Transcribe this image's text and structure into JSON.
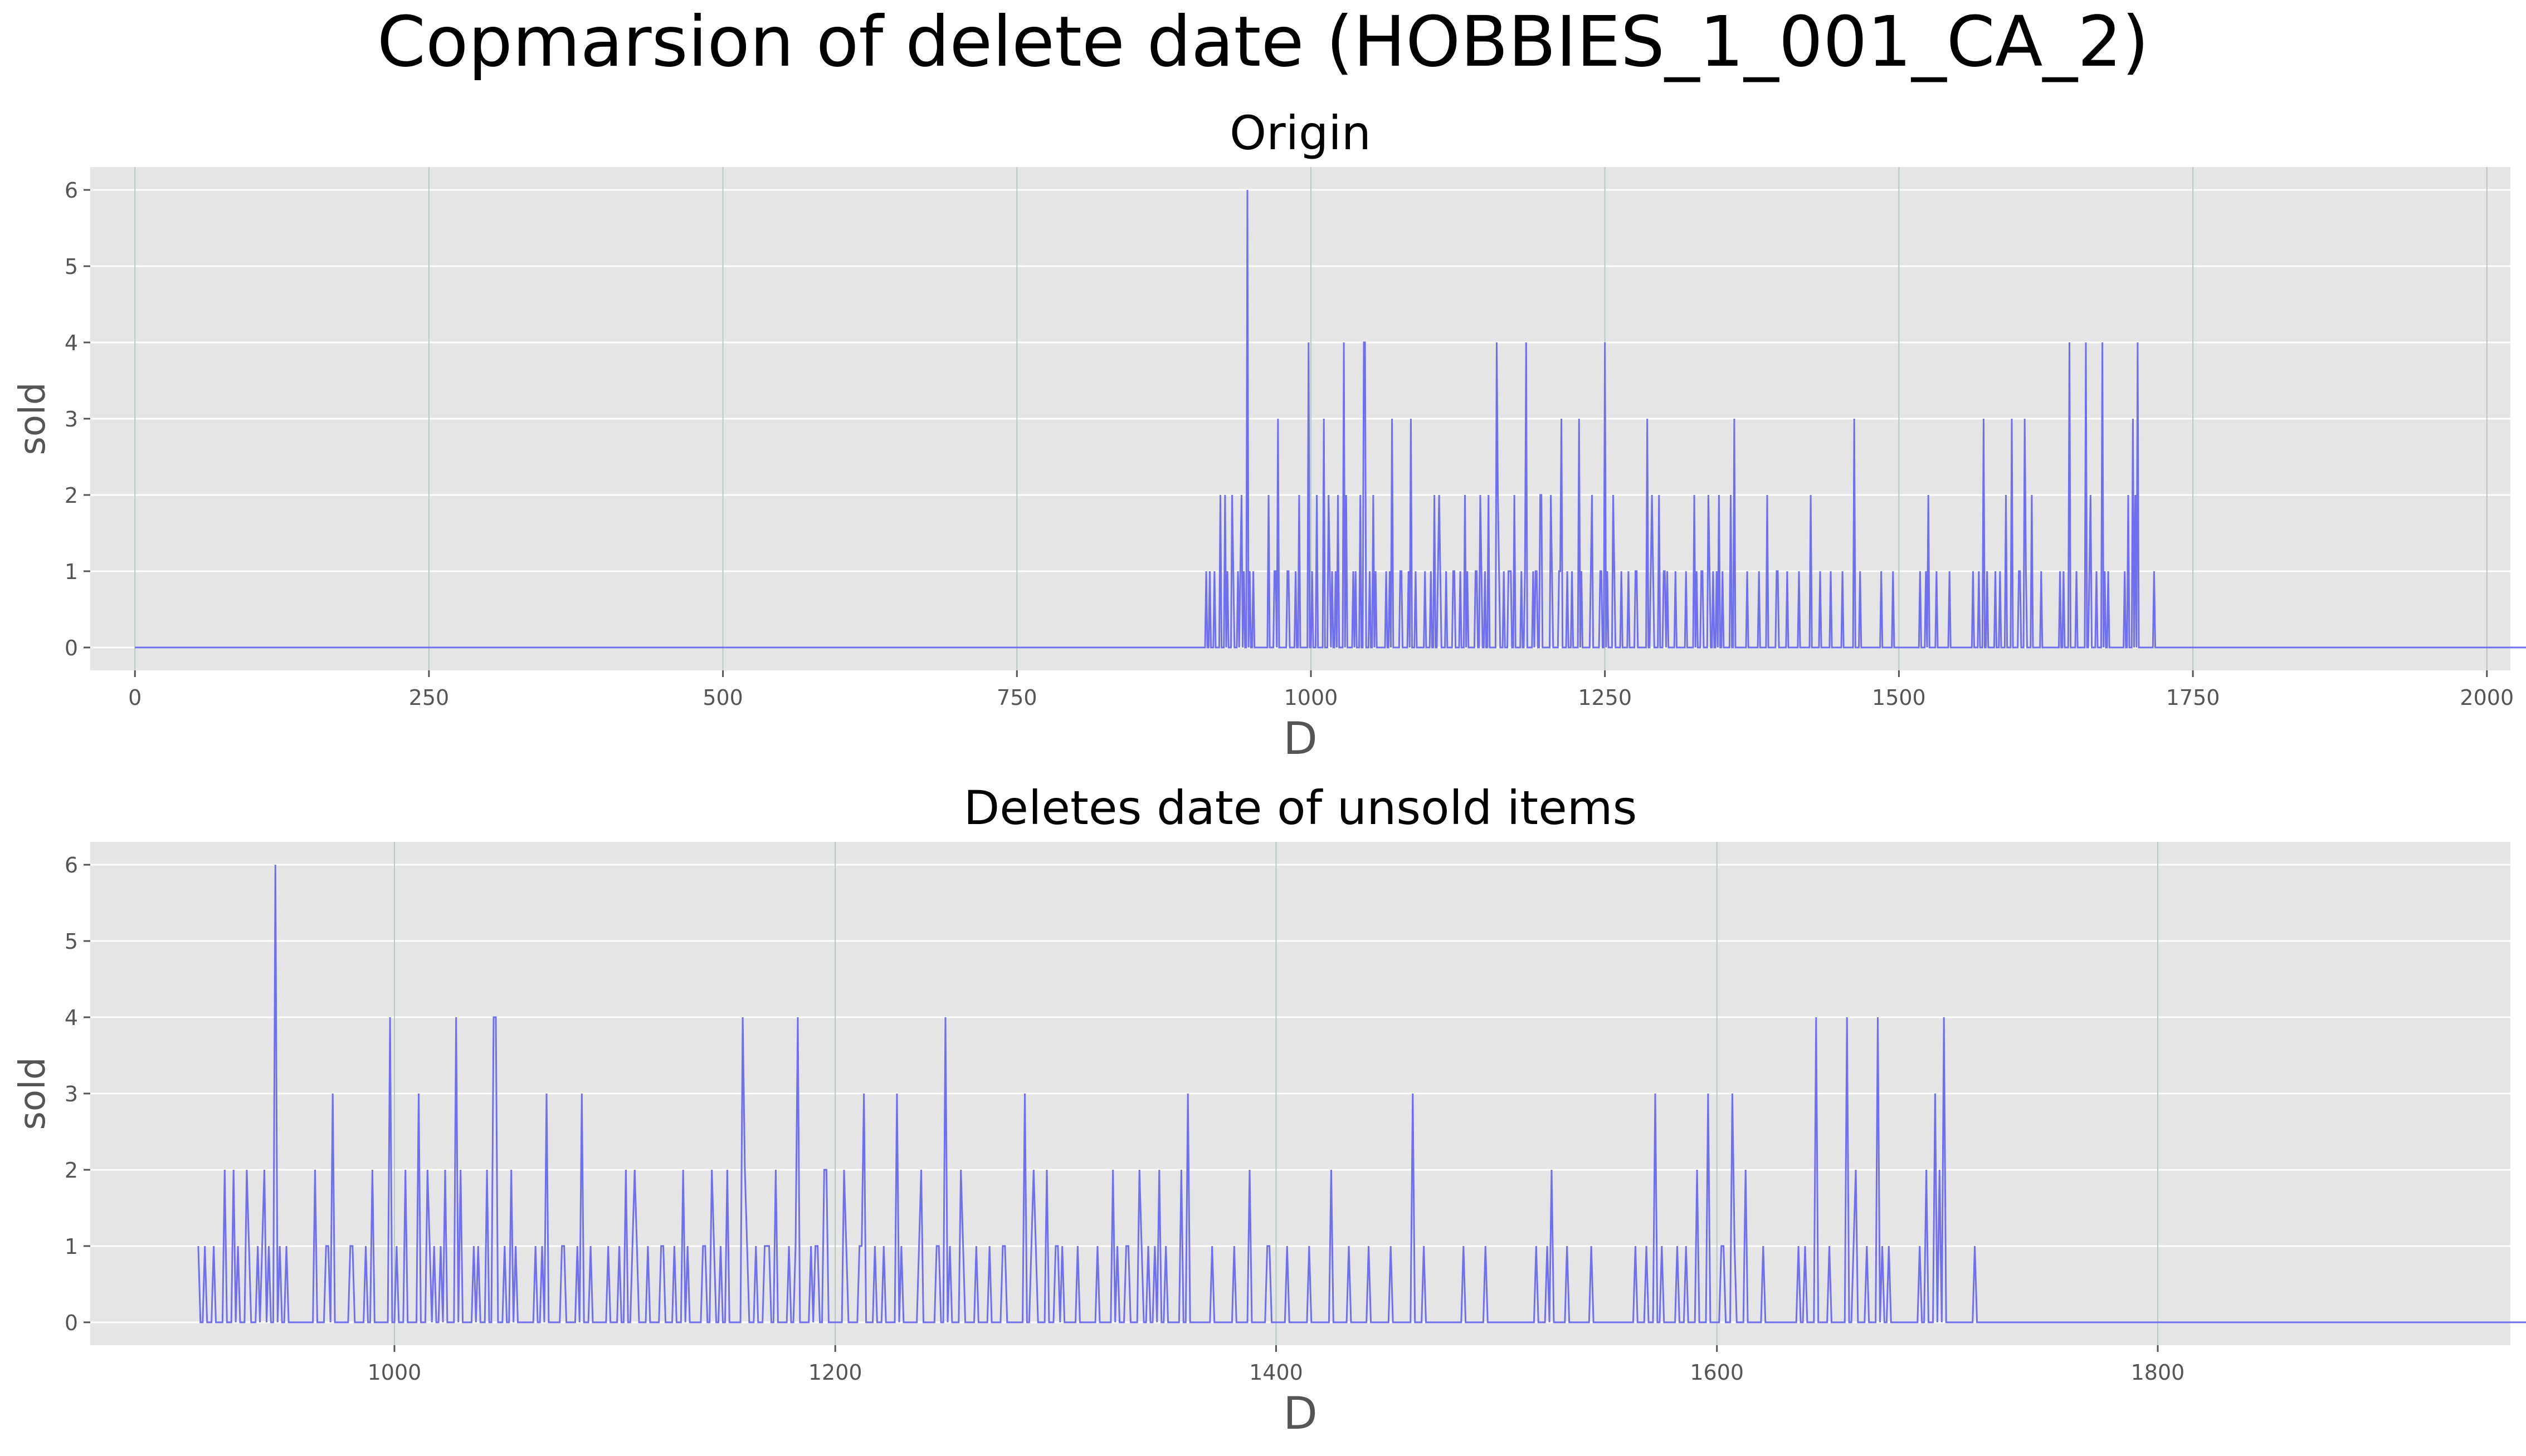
{
  "figure": {
    "suptitle": "Copmarsion of delete date (HOBBIES_1_001_CA_2)"
  },
  "colors": {
    "line": "#6f6ff0",
    "panel_bg": "#e5e5e5",
    "grid_h": "#ffffff",
    "grid_v": "#b8c9c4",
    "tick_text": "#555555",
    "label_text": "#555555",
    "title_text": "#000000"
  },
  "chart_data": [
    {
      "type": "line",
      "title": "Origin",
      "xlabel": "D",
      "ylabel": "sold",
      "xlim": [
        -38,
        2020
      ],
      "ylim": [
        -0.3,
        6.3
      ],
      "xticks": [
        0,
        250,
        500,
        750,
        1000,
        1250,
        1500,
        1750,
        2000
      ],
      "yticks": [
        0,
        1,
        2,
        3,
        4,
        5,
        6
      ],
      "grid": "x-major vertical and y-major horizontal",
      "series": [
        {
          "x_start": 0,
          "x_step": 1,
          "zero_run_until": 911,
          "notes_x": [
            911,
            1941
          ],
          "values_from_911": [
            1,
            0,
            0,
            1,
            0,
            0,
            0,
            1,
            0,
            0,
            0,
            0,
            2,
            0,
            0,
            0,
            2,
            0,
            1,
            0,
            0,
            0,
            2,
            1,
            0,
            0,
            0,
            1,
            0,
            1,
            2,
            0,
            1,
            0,
            0,
            6,
            0,
            1,
            0,
            0,
            1,
            0,
            0,
            0,
            0,
            0,
            0,
            0,
            0,
            0,
            0,
            0,
            0,
            2,
            0,
            0,
            0,
            0,
            1,
            1,
            0,
            3,
            0,
            0,
            0,
            0,
            0,
            0,
            0,
            1,
            1,
            0,
            0,
            0,
            0,
            0,
            1,
            0,
            0,
            2,
            0,
            0,
            0,
            0,
            0,
            0,
            0,
            4,
            0,
            0,
            1,
            0,
            0,
            0,
            2,
            0,
            0,
            0,
            0,
            0,
            3,
            0,
            0,
            0,
            2,
            1,
            0,
            1,
            0,
            0,
            1,
            0,
            2,
            0,
            0,
            0,
            0,
            4,
            0,
            2,
            0,
            0,
            0,
            0,
            0,
            1,
            0,
            1,
            0,
            0,
            0,
            2,
            0,
            0,
            4,
            4,
            0,
            0,
            0,
            1,
            0,
            0,
            2,
            0,
            1,
            0,
            0,
            0,
            0,
            0,
            0,
            0,
            0,
            1,
            0,
            0,
            1,
            0,
            3,
            0,
            0,
            0,
            0,
            0,
            0,
            1,
            1,
            0,
            0,
            0,
            0,
            0,
            1,
            0,
            3,
            0,
            0,
            0,
            1,
            0,
            0,
            0,
            0,
            0,
            0,
            0,
            1,
            0,
            0,
            0,
            0,
            1,
            0,
            0,
            2,
            0,
            0,
            1,
            2,
            1,
            0,
            0,
            0,
            0,
            1,
            0,
            0,
            0,
            0,
            0,
            1,
            1,
            0,
            0,
            0,
            0,
            1,
            0,
            0,
            0,
            2,
            0,
            1,
            0,
            0,
            0,
            0,
            0,
            0,
            1,
            1,
            0,
            0,
            2,
            1,
            0,
            0,
            1,
            0,
            0,
            2,
            0,
            0,
            0,
            0,
            0,
            0,
            4,
            2,
            1,
            0,
            0,
            0,
            1,
            0,
            0,
            0,
            1,
            1,
            1,
            0,
            0,
            2,
            0,
            0,
            0,
            0,
            0,
            1,
            0,
            0,
            1,
            4,
            0,
            0,
            0,
            0,
            0,
            1,
            0,
            1,
            1,
            0,
            0,
            2,
            2,
            0,
            0,
            0,
            0,
            0,
            0,
            0,
            2,
            1,
            0,
            0,
            0,
            0,
            0,
            1,
            1,
            3,
            0,
            0,
            0,
            0,
            1,
            0,
            0,
            0,
            1,
            0,
            0,
            0,
            0,
            0,
            3,
            0,
            1,
            0,
            0,
            0,
            0,
            0,
            0,
            0,
            1,
            2,
            0,
            0,
            0,
            0,
            0,
            0,
            1,
            1,
            0,
            0,
            4,
            0,
            1,
            0,
            0,
            0,
            0,
            2,
            1,
            0,
            0,
            0,
            0,
            0,
            1,
            0,
            0,
            0,
            0,
            0,
            1,
            0,
            0,
            0,
            0,
            0,
            1,
            1,
            0,
            0,
            0,
            0,
            0,
            0,
            0,
            0,
            3,
            0,
            0,
            1,
            2,
            1,
            0,
            0,
            0,
            0,
            2,
            0,
            0,
            0,
            1,
            1,
            0,
            1,
            0,
            0,
            0,
            0,
            0,
            0,
            1,
            0,
            0,
            0,
            0,
            0,
            0,
            0,
            0,
            1,
            0,
            0,
            0,
            0,
            0,
            0,
            2,
            0,
            1,
            0,
            0,
            0,
            1,
            1,
            0,
            0,
            0,
            0,
            2,
            1,
            0,
            0,
            1,
            0,
            0,
            1,
            0,
            2,
            0,
            0,
            1,
            0,
            0,
            0,
            0,
            0,
            0,
            2,
            0,
            0,
            3,
            0,
            0,
            0,
            0,
            0,
            0,
            0,
            0,
            0,
            0,
            1,
            0,
            0,
            0,
            0,
            0,
            0,
            0,
            0,
            0,
            1,
            0,
            0,
            0,
            0,
            0,
            0,
            2,
            0,
            0,
            0,
            0,
            0,
            0,
            0,
            1,
            1,
            0,
            0,
            0,
            0,
            0,
            0,
            0,
            1,
            0,
            0,
            0,
            0,
            0,
            0,
            0,
            0,
            0,
            1,
            0,
            0,
            0,
            0,
            0,
            0,
            0,
            0,
            0,
            2,
            0,
            0,
            0,
            0,
            0,
            0,
            0,
            1,
            0,
            0,
            0,
            0,
            0,
            0,
            0,
            0,
            1,
            0,
            0,
            0,
            0,
            0,
            0,
            0,
            0,
            0,
            1,
            0,
            0,
            0,
            0,
            0,
            0,
            0,
            0,
            0,
            3,
            0,
            0,
            0,
            0,
            1,
            0,
            0,
            0,
            0,
            0,
            0,
            0,
            0,
            0,
            0,
            0,
            0,
            0,
            0,
            0,
            0,
            0,
            1,
            0,
            0,
            0,
            0,
            0,
            0,
            0,
            0,
            0,
            1,
            0,
            0,
            0,
            0,
            0,
            0,
            0,
            0,
            0,
            0,
            0,
            0,
            0,
            0,
            0,
            0,
            0,
            0,
            0,
            0,
            0,
            0,
            1,
            0,
            0,
            0,
            0,
            1,
            0,
            2,
            0,
            0,
            0,
            0,
            0,
            0,
            1,
            0,
            0,
            0,
            0,
            0,
            0,
            0,
            0,
            0,
            0,
            1,
            0,
            0,
            0,
            0,
            0,
            0,
            0,
            0,
            0,
            0,
            0,
            0,
            0,
            0,
            0,
            0,
            0,
            0,
            0,
            1,
            0,
            0,
            0,
            0,
            1,
            0,
            0,
            0,
            3,
            0,
            0,
            1,
            0,
            0,
            0,
            0,
            0,
            0,
            1,
            0,
            0,
            0,
            1,
            0,
            0,
            0,
            0,
            2,
            0,
            0,
            0,
            0,
            3,
            0,
            0,
            0,
            0,
            0,
            1,
            1,
            0,
            0,
            0,
            3,
            1,
            0,
            0,
            0,
            0,
            2,
            0,
            0,
            0,
            0,
            0,
            0,
            0,
            1,
            0,
            0,
            0,
            0,
            0,
            0,
            0,
            0,
            0,
            0,
            0,
            0,
            0,
            0,
            0,
            1,
            0,
            0,
            1,
            0,
            0,
            0,
            0,
            4,
            0,
            0,
            0,
            0,
            0,
            1,
            0,
            0,
            0,
            0,
            0,
            0,
            0,
            4,
            0,
            0,
            1,
            2,
            0,
            0,
            0,
            0,
            1,
            0,
            0,
            0,
            0,
            4,
            0,
            1,
            0,
            0,
            1,
            0,
            0,
            0,
            0,
            0,
            0,
            0,
            0,
            0,
            0,
            0,
            0,
            0,
            1,
            0,
            0,
            2,
            0,
            0,
            0,
            3,
            0,
            2,
            0,
            4,
            0,
            0,
            0,
            0,
            0,
            0,
            0,
            0,
            0,
            0,
            0,
            0,
            0,
            1,
            0,
            0,
            0,
            0,
            0,
            0,
            0,
            0,
            0,
            0,
            0,
            0,
            0,
            0,
            0,
            0,
            0,
            0,
            0,
            0,
            0,
            0,
            0,
            0,
            0,
            0,
            0,
            0,
            0,
            0,
            0,
            0,
            0,
            0,
            0,
            0,
            0,
            0,
            0,
            0,
            0,
            0,
            0,
            0,
            0,
            0,
            0,
            0,
            0,
            0,
            0,
            0,
            0,
            0,
            0,
            0,
            0,
            0,
            0,
            0,
            0,
            0,
            0,
            0,
            0,
            0,
            0,
            0,
            0,
            0,
            0,
            0,
            0,
            0,
            0,
            0,
            0,
            0,
            0,
            0,
            0,
            0,
            0,
            0,
            0,
            0,
            0,
            0,
            0,
            0,
            0,
            0,
            0,
            0,
            0,
            0,
            0,
            0,
            0,
            0,
            0,
            0,
            0,
            0,
            0,
            0,
            0,
            0,
            0,
            0,
            0,
            0,
            0,
            0,
            0,
            0,
            0,
            0,
            0,
            0,
            0,
            0,
            0,
            0,
            0,
            0,
            0,
            0,
            0,
            0,
            0,
            0,
            0,
            0,
            0,
            0,
            0,
            0,
            0,
            0,
            0,
            0,
            0,
            0,
            0,
            0,
            0,
            0,
            0,
            0,
            0,
            0,
            0,
            0,
            0,
            0,
            0,
            0,
            0,
            0,
            0,
            0,
            0,
            0,
            0,
            0,
            0,
            0,
            0,
            0,
            0,
            0,
            0,
            0,
            0,
            0,
            0,
            0,
            0,
            0,
            0,
            0,
            0,
            0,
            0,
            0,
            0,
            0,
            0,
            0,
            0,
            0,
            0,
            0,
            0,
            0,
            0,
            0,
            0,
            0,
            0,
            0,
            0,
            0,
            0,
            0,
            0,
            0,
            0,
            0,
            0,
            0,
            0,
            0,
            0,
            0,
            0,
            0,
            0,
            0,
            0,
            0,
            0,
            0,
            0,
            0,
            0,
            0,
            0,
            0,
            0,
            0,
            0,
            0,
            0,
            0,
            0,
            0,
            0,
            0,
            0,
            0,
            0,
            0,
            0,
            0,
            0,
            0,
            0,
            0,
            0,
            0,
            0,
            0,
            0,
            0,
            0,
            0,
            0,
            0,
            0,
            0,
            0,
            0,
            0,
            0,
            0,
            0,
            0,
            0,
            0,
            0,
            0,
            0,
            0,
            0,
            0,
            0,
            0,
            0,
            0,
            0,
            0,
            0,
            0,
            0,
            0,
            0,
            0,
            0,
            0,
            0,
            0,
            0,
            0,
            0,
            0,
            0,
            0,
            0,
            0,
            0,
            0,
            0,
            0,
            0,
            0,
            0,
            0,
            0,
            0,
            0,
            0,
            0,
            0,
            0,
            0,
            0,
            0,
            0,
            0
          ]
        }
      ]
    },
    {
      "type": "line",
      "title": "Deletes date of unsold items",
      "xlabel": "D",
      "ylabel": "sold",
      "xlim": [
        862,
        1960
      ],
      "ylim": [
        -0.3,
        6.3
      ],
      "xticks": [
        1000,
        1200,
        1400,
        1600,
        1800
      ],
      "yticks": [
        0,
        1,
        2,
        3,
        4,
        5,
        6
      ],
      "grid": "x-major vertical and y-major horizontal",
      "series": [
        {
          "x_start": 911,
          "x_step": 1,
          "same_values_as": "Origin.values_from_911"
        }
      ]
    }
  ]
}
